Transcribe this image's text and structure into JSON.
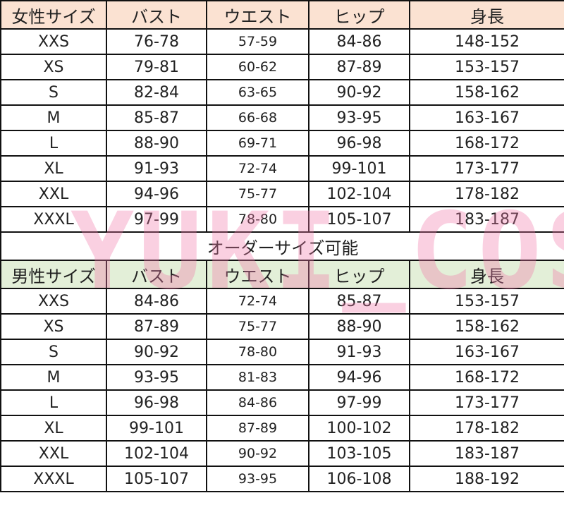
{
  "watermark": "YUKI_COS",
  "colors": {
    "female_header": "#fbe2d2",
    "male_header": "#e3efd8",
    "watermark": "#f078aa"
  },
  "female": {
    "headers": [
      "女性サイズ",
      "バスト",
      "ウエスト",
      "ヒップ",
      "身長"
    ],
    "rows": [
      [
        "XXS",
        "76-78",
        "57-59",
        "84-86",
        "148-152"
      ],
      [
        "XS",
        "79-81",
        "60-62",
        "87-89",
        "153-157"
      ],
      [
        "S",
        "82-84",
        "63-65",
        "90-92",
        "158-162"
      ],
      [
        "M",
        "85-87",
        "66-68",
        "93-95",
        "163-167"
      ],
      [
        "L",
        "88-90",
        "69-71",
        "96-98",
        "168-172"
      ],
      [
        "XL",
        "91-93",
        "72-74",
        "99-101",
        "173-177"
      ],
      [
        "XXL",
        "94-96",
        "75-77",
        "102-104",
        "178-182"
      ],
      [
        "XXXL",
        "97-99",
        "78-80",
        "105-107",
        "183-187"
      ]
    ]
  },
  "order_note": "オーダーサイズ可能",
  "male": {
    "headers": [
      "男性サイズ",
      "バスト",
      "ウエスト",
      "ヒップ",
      "身長"
    ],
    "rows": [
      [
        "XXS",
        "84-86",
        "72-74",
        "85-87",
        "153-157"
      ],
      [
        "XS",
        "87-89",
        "75-77",
        "88-90",
        "158-162"
      ],
      [
        "S",
        "90-92",
        "78-80",
        "91-93",
        "163-167"
      ],
      [
        "M",
        "93-95",
        "81-83",
        "94-96",
        "168-172"
      ],
      [
        "L",
        "96-98",
        "84-86",
        "97-99",
        "173-177"
      ],
      [
        "XL",
        "99-101",
        "87-89",
        "100-102",
        "178-182"
      ],
      [
        "XXL",
        "102-104",
        "90-92",
        "103-105",
        "183-187"
      ],
      [
        "XXXL",
        "105-107",
        "93-95",
        "106-108",
        "188-192"
      ]
    ]
  }
}
